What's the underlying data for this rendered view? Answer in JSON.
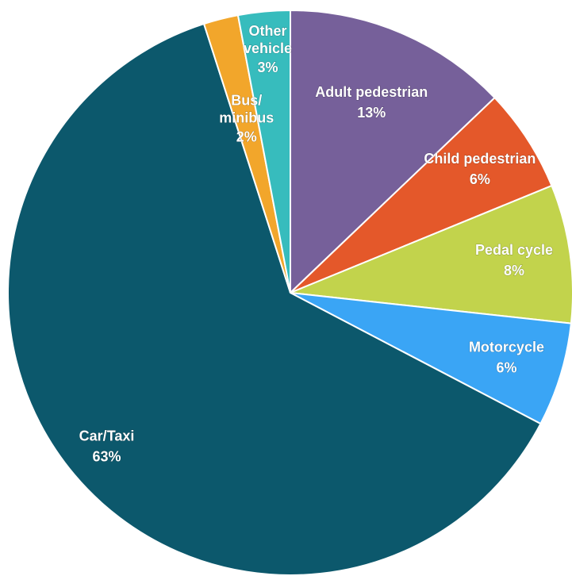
{
  "chart_data": {
    "type": "pie",
    "categories": [
      "Adult pedestrian",
      "Child pedestrian",
      "Pedal cycle",
      "Motorcycle",
      "Car/Taxi",
      "Bus/ minibus",
      "Other vehicle"
    ],
    "values": [
      13,
      6,
      8,
      6,
      63,
      2,
      3
    ],
    "value_labels": [
      "13%",
      "6%",
      "8%",
      "6%",
      "63%",
      "2%",
      "3%"
    ],
    "colors": [
      "#76609a",
      "#e4582a",
      "#c2d34c",
      "#3aa5f5",
      "#0c586c",
      "#f2a62b",
      "#37bcbd"
    ]
  }
}
